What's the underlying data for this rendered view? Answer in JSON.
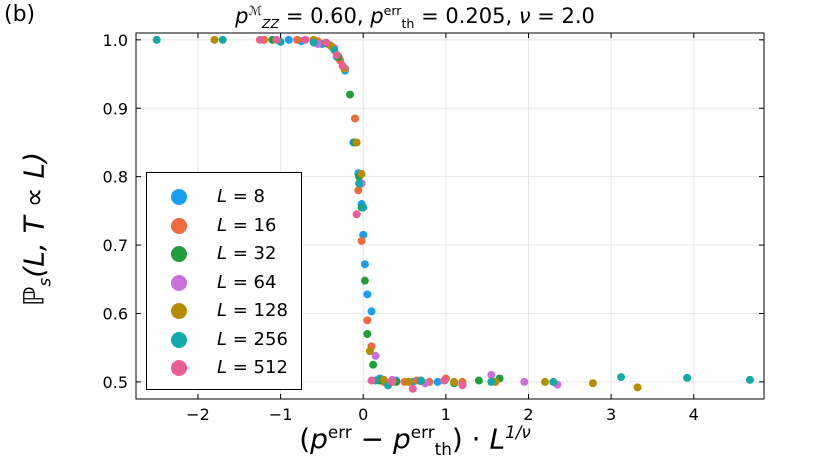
{
  "panel_label": "(b)",
  "title": {
    "p_symbol": "p",
    "p_sup": "ℳ",
    "p_sub": "ZZ",
    "eq1": " = 0.60, ",
    "pth_symbol": "p",
    "pth_sup": "err",
    "pth_sub": "th",
    "eq2": " = 0.205, ",
    "nu_text": "ν",
    "eq3": " = 2.0"
  },
  "xlabel": {
    "open": "(",
    "p": "p",
    "p_sup": "err",
    "minus": " − ",
    "pth": "p",
    "pth_sup": "err",
    "pth_sub": "th",
    "close": ") · ",
    "L": "L",
    "L_sup": "1/ν"
  },
  "ylabel": {
    "P": "ℙ",
    "P_sub": "s",
    "args": "(L, T ∝ L)"
  },
  "chart_data": {
    "type": "scatter",
    "title": "p_ZZ^M = 0.60, p_th^err = 0.205, ν = 2.0",
    "xlabel": "(p^err − p_th^err) · L^{1/ν}",
    "ylabel": "P_s(L, T ∝ L)",
    "xlim": [
      -2.75,
      4.85
    ],
    "ylim": [
      0.475,
      1.01
    ],
    "xticks": [
      -2,
      -1,
      0,
      1,
      2,
      3,
      4
    ],
    "xtick_labels": [
      "−2",
      "−1",
      "0",
      "1",
      "2",
      "3",
      "4"
    ],
    "yticks": [
      0.5,
      0.6,
      0.7,
      0.8,
      0.9,
      1.0
    ],
    "ytick_labels": [
      "0.5",
      "0.6",
      "0.7",
      "0.8",
      "0.9",
      "1.0"
    ],
    "grid": true,
    "legend_position": "lower-left",
    "series": [
      {
        "name": "L = 8",
        "label": "8",
        "color": "#1a9ef2",
        "x": [
          -0.9,
          -0.75,
          -0.5,
          -0.32,
          -0.22,
          -0.12,
          -0.06,
          -0.02,
          0.0,
          0.02,
          0.05,
          0.1,
          0.2,
          0.4,
          0.6,
          0.9,
          1.2
        ],
        "y": [
          1.0,
          0.998,
          0.994,
          0.975,
          0.955,
          0.85,
          0.805,
          0.76,
          0.715,
          0.672,
          0.628,
          0.603,
          0.505,
          0.502,
          0.5,
          0.5,
          0.497
        ]
      },
      {
        "name": "L = 16",
        "label": "16",
        "color": "#ef6b3c",
        "x": [
          -1.2,
          -0.8,
          -0.55,
          -0.4,
          -0.28,
          -0.1,
          -0.06,
          -0.02,
          0.05,
          0.1,
          0.25,
          0.5,
          0.65,
          0.8,
          1.0,
          1.2
        ],
        "y": [
          1.0,
          1.0,
          0.998,
          0.992,
          0.97,
          0.885,
          0.78,
          0.706,
          0.59,
          0.552,
          0.5,
          0.5,
          0.502,
          0.5,
          0.505,
          0.5
        ]
      },
      {
        "name": "L = 32",
        "label": "32",
        "color": "#1f9e3a",
        "x": [
          -1.1,
          -0.6,
          -0.45,
          -0.3,
          -0.16,
          -0.1,
          -0.05,
          -0.02,
          0.02,
          0.05,
          0.12,
          0.2,
          0.4,
          0.7,
          1.1,
          1.4,
          1.65
        ],
        "y": [
          1.0,
          0.999,
          0.995,
          0.975,
          0.92,
          0.85,
          0.8,
          0.755,
          0.648,
          0.57,
          0.525,
          0.502,
          0.5,
          0.501,
          0.498,
          0.502,
          0.505
        ]
      },
      {
        "name": "L = 64",
        "label": "64",
        "color": "#cb6fdc",
        "x": [
          -0.55,
          -0.35,
          -0.22,
          -0.02,
          0.15,
          0.35,
          0.75,
          1.55,
          1.95,
          2.35
        ],
        "y": [
          0.994,
          0.988,
          0.958,
          0.79,
          0.538,
          0.503,
          0.498,
          0.51,
          0.5,
          0.496
        ]
      },
      {
        "name": "L = 128",
        "label": "128",
        "color": "#b78d00",
        "x": [
          -1.8,
          -0.6,
          -0.38,
          -0.23,
          -0.08,
          -0.02,
          0.08,
          0.25,
          0.55,
          1.1,
          1.6,
          2.2,
          2.78,
          3.32
        ],
        "y": [
          1.0,
          1.0,
          0.99,
          0.958,
          0.85,
          0.804,
          0.545,
          0.503,
          0.5,
          0.5,
          0.5,
          0.5,
          0.498,
          0.492
        ]
      },
      {
        "name": "L = 256",
        "label": "256",
        "color": "#12aaa9",
        "x": [
          -2.5,
          -1.7,
          -1.0,
          -0.6,
          -0.35,
          -0.05,
          0.0,
          0.15,
          0.3,
          0.7,
          1.55,
          2.3,
          3.12,
          3.92,
          4.68
        ],
        "y": [
          1.0,
          1.0,
          0.997,
          0.996,
          0.985,
          0.79,
          0.755,
          0.502,
          0.495,
          0.502,
          0.5,
          0.5,
          0.507,
          0.506,
          0.503
        ]
      },
      {
        "name": "L = 512",
        "label": "512",
        "color": "#ea5d96",
        "x": [
          -1.25,
          -1.05,
          -0.7,
          -0.45,
          -0.32,
          -0.25,
          -0.08,
          0.1,
          0.35,
          0.6,
          0.98,
          1.2
        ],
        "y": [
          1.0,
          1.0,
          1.0,
          0.996,
          0.978,
          0.962,
          0.745,
          0.502,
          0.5,
          0.49,
          0.502,
          0.495
        ]
      }
    ]
  }
}
